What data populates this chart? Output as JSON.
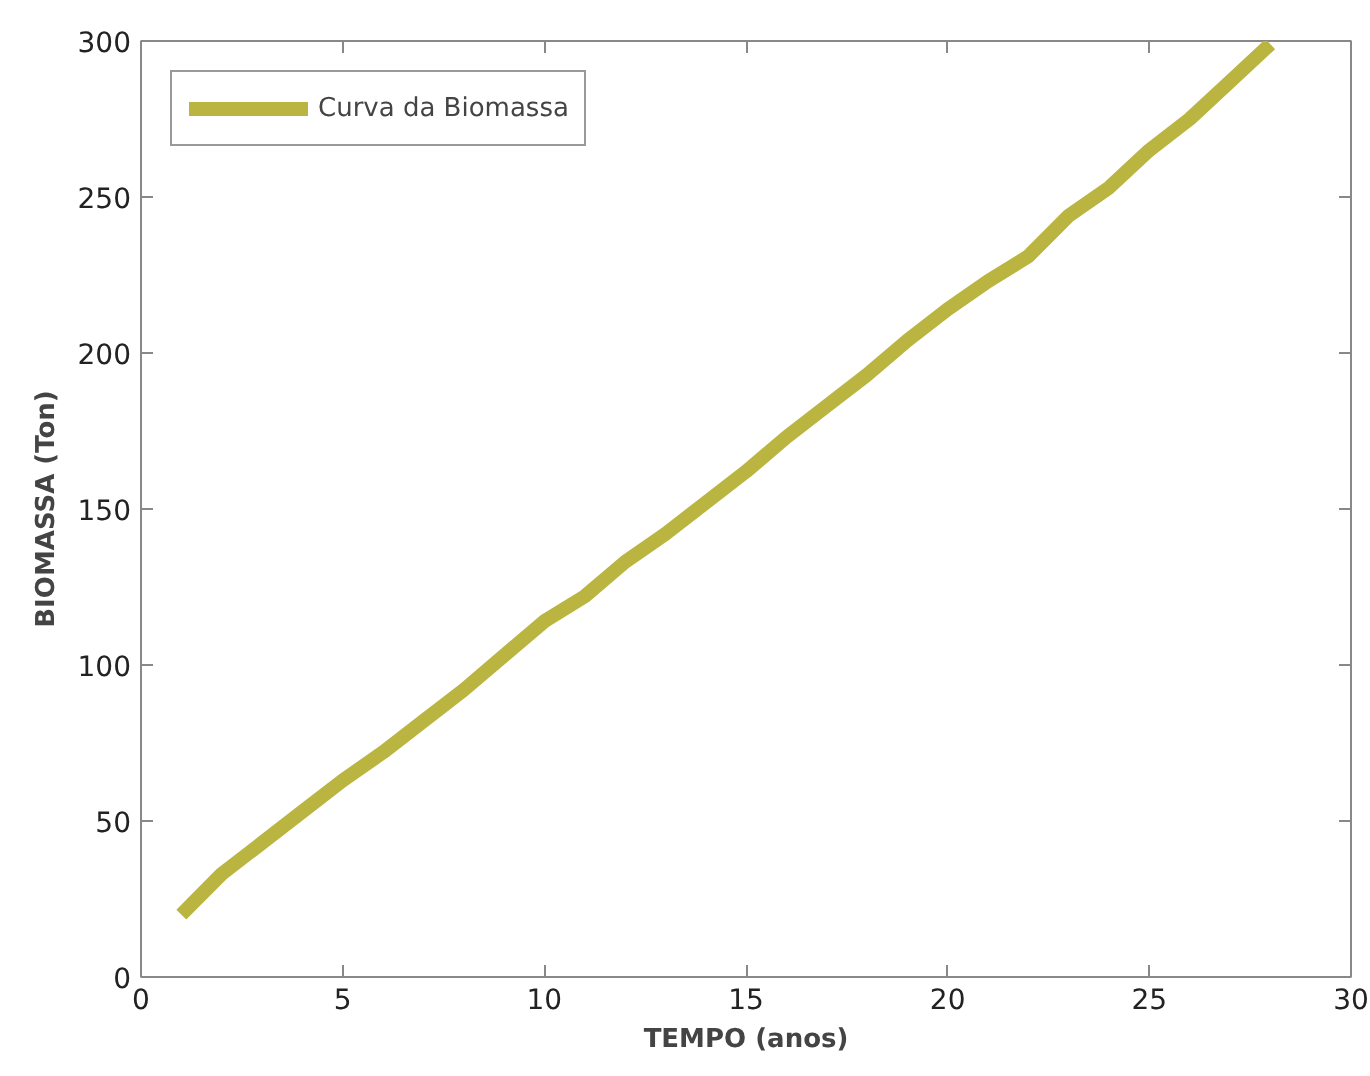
{
  "chart_data": {
    "type": "line",
    "xlabel": "TEMPO (anos)",
    "ylabel": "BIOMASSA (Ton)",
    "x": [
      1,
      2,
      3,
      4,
      5,
      6,
      7,
      8,
      9,
      10,
      11,
      12,
      13,
      14,
      15,
      16,
      17,
      18,
      19,
      20,
      21,
      22,
      23,
      24,
      25,
      26,
      27,
      28
    ],
    "series": [
      {
        "name": "Curva da Biomassa",
        "color": "#bab440",
        "values": [
          20,
          33,
          43,
          53,
          63,
          72,
          82,
          92,
          103,
          114,
          122,
          133,
          142,
          152,
          162,
          173,
          183,
          193,
          204,
          214,
          223,
          231,
          244,
          253,
          265,
          275,
          287,
          299
        ]
      }
    ],
    "xlim": [
      0,
      30
    ],
    "ylim": [
      0,
      300
    ],
    "xticks": [
      0,
      5,
      10,
      15,
      20,
      25,
      30
    ],
    "yticks": [
      0,
      50,
      100,
      150,
      200,
      250,
      300
    ],
    "grid": false,
    "legend": "top left",
    "marker": "none",
    "line_style": "solid"
  }
}
